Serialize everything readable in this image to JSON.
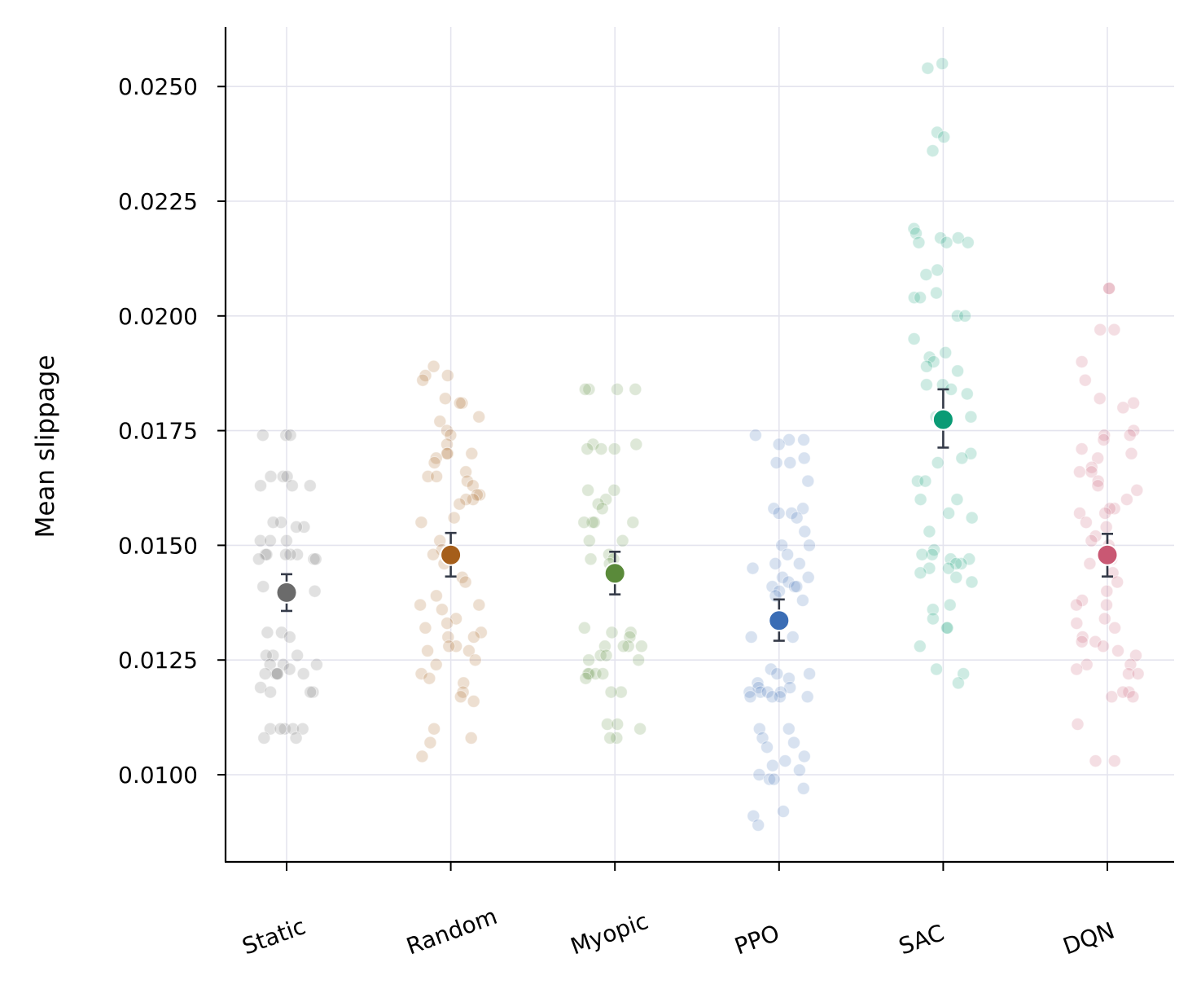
{
  "chart_data": {
    "type": "scatter",
    "title": "",
    "xlabel": "",
    "ylabel": "Mean slippage",
    "ylim": [
      0.0081,
      0.0263
    ],
    "yticks": [
      "0.0100",
      "0.0125",
      "0.0150",
      "0.0175",
      "0.0200",
      "0.0225",
      "0.0250"
    ],
    "grid": true,
    "categories": [
      "Static",
      "Random",
      "Myopic",
      "PPO",
      "SAC",
      "DQN"
    ],
    "colors": [
      "#6b6b6b",
      "#a55e1a",
      "#5a8a3a",
      "#3a6db5",
      "#0a9b75",
      "#c95873"
    ],
    "means": [
      0.01397,
      0.01479,
      0.01439,
      0.01336,
      0.01774,
      0.01479
    ],
    "error_low": [
      0.01357,
      0.01432,
      0.01393,
      0.01292,
      0.01713,
      0.01432
    ],
    "error_high": [
      0.01437,
      0.01527,
      0.01486,
      0.01382,
      0.0184,
      0.01525
    ],
    "points": [
      [
        0.0174,
        0.0174,
        0.0174,
        0.0165,
        0.0165,
        0.0165,
        0.0163,
        0.0163,
        0.0163,
        0.0155,
        0.0155,
        0.0154,
        0.0154,
        0.0151,
        0.0151,
        0.0151,
        0.0148,
        0.0148,
        0.0148,
        0.0148,
        0.0148,
        0.0147,
        0.0147,
        0.0147,
        0.0141,
        0.014,
        0.014,
        0.0131,
        0.0131,
        0.013,
        0.0126,
        0.0126,
        0.0126,
        0.0124,
        0.0124,
        0.0124,
        0.0123,
        0.0122,
        0.0122,
        0.0122,
        0.0122,
        0.0122,
        0.0119,
        0.0118,
        0.0118,
        0.0118,
        0.011,
        0.011,
        0.011,
        0.011,
        0.011,
        0.0108,
        0.0108
      ],
      [
        0.0189,
        0.0187,
        0.0187,
        0.0186,
        0.0182,
        0.0181,
        0.0181,
        0.0178,
        0.0177,
        0.0175,
        0.0174,
        0.0172,
        0.017,
        0.017,
        0.017,
        0.0169,
        0.0168,
        0.0166,
        0.0165,
        0.0165,
        0.0164,
        0.0163,
        0.0161,
        0.0161,
        0.016,
        0.016,
        0.0159,
        0.0156,
        0.0155,
        0.0151,
        0.0149,
        0.0148,
        0.0146,
        0.0143,
        0.0142,
        0.0139,
        0.0137,
        0.0137,
        0.0136,
        0.0134,
        0.0133,
        0.0132,
        0.0131,
        0.013,
        0.013,
        0.0128,
        0.0128,
        0.0127,
        0.0127,
        0.0125,
        0.0124,
        0.0122,
        0.0121,
        0.012,
        0.0118,
        0.0117,
        0.0116,
        0.011,
        0.0108,
        0.0107,
        0.0104
      ],
      [
        0.0184,
        0.0184,
        0.0184,
        0.0184,
        0.0172,
        0.0172,
        0.0171,
        0.0171,
        0.0171,
        0.0162,
        0.0162,
        0.016,
        0.0159,
        0.0158,
        0.0155,
        0.0155,
        0.0155,
        0.0155,
        0.0151,
        0.0151,
        0.0148,
        0.0147,
        0.0147,
        0.0146,
        0.0132,
        0.0131,
        0.0131,
        0.013,
        0.0128,
        0.0128,
        0.0128,
        0.0128,
        0.0126,
        0.0126,
        0.0125,
        0.0125,
        0.0122,
        0.0122,
        0.0122,
        0.0122,
        0.0121,
        0.0118,
        0.0118,
        0.0111,
        0.0111,
        0.011,
        0.0108,
        0.0108
      ],
      [
        0.0174,
        0.0173,
        0.0173,
        0.0172,
        0.0169,
        0.0168,
        0.0168,
        0.0164,
        0.0158,
        0.0158,
        0.0157,
        0.0157,
        0.0156,
        0.0153,
        0.015,
        0.015,
        0.0148,
        0.0146,
        0.0146,
        0.0145,
        0.0143,
        0.0143,
        0.0142,
        0.0141,
        0.0141,
        0.0141,
        0.014,
        0.0139,
        0.0138,
        0.013,
        0.013,
        0.0123,
        0.0122,
        0.0122,
        0.0121,
        0.012,
        0.0119,
        0.0119,
        0.0118,
        0.0118,
        0.0118,
        0.0118,
        0.0117,
        0.0117,
        0.0117,
        0.0117,
        0.011,
        0.011,
        0.0108,
        0.0107,
        0.0106,
        0.0104,
        0.0103,
        0.0102,
        0.0101,
        0.01,
        0.0099,
        0.0099,
        0.0097,
        0.0092,
        0.0091,
        0.0089
      ],
      [
        0.0255,
        0.0254,
        0.024,
        0.0239,
        0.0236,
        0.0219,
        0.0218,
        0.0217,
        0.0217,
        0.0216,
        0.0216,
        0.0216,
        0.021,
        0.0209,
        0.0205,
        0.0204,
        0.0204,
        0.02,
        0.02,
        0.0195,
        0.0192,
        0.0191,
        0.019,
        0.0189,
        0.0188,
        0.0185,
        0.0185,
        0.0184,
        0.0183,
        0.0178,
        0.0178,
        0.017,
        0.0169,
        0.0168,
        0.0164,
        0.0164,
        0.016,
        0.016,
        0.0157,
        0.0156,
        0.0153,
        0.0149,
        0.0148,
        0.0148,
        0.0147,
        0.0147,
        0.0146,
        0.0146,
        0.0145,
        0.0145,
        0.0144,
        0.0143,
        0.0142,
        0.0137,
        0.0136,
        0.0134,
        0.0132,
        0.0132,
        0.0128,
        0.0123,
        0.0122,
        0.012
      ],
      [
        0.0206,
        0.0206,
        0.0197,
        0.0197,
        0.019,
        0.0186,
        0.0182,
        0.0181,
        0.018,
        0.0175,
        0.0174,
        0.0174,
        0.0173,
        0.0171,
        0.017,
        0.0169,
        0.0167,
        0.0166,
        0.0166,
        0.0164,
        0.0163,
        0.0162,
        0.016,
        0.0158,
        0.0158,
        0.0157,
        0.0157,
        0.0155,
        0.0154,
        0.0152,
        0.0151,
        0.015,
        0.0147,
        0.0146,
        0.0144,
        0.0142,
        0.014,
        0.0138,
        0.0137,
        0.0137,
        0.0134,
        0.0133,
        0.0132,
        0.013,
        0.0129,
        0.0129,
        0.0128,
        0.0127,
        0.0126,
        0.0124,
        0.0124,
        0.0123,
        0.0122,
        0.0122,
        0.0118,
        0.0118,
        0.0117,
        0.0117,
        0.0111,
        0.0103,
        0.0103
      ]
    ]
  }
}
